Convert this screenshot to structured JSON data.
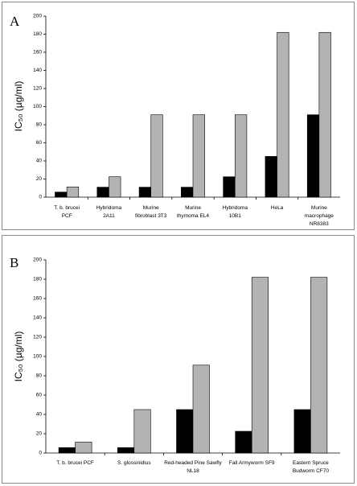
{
  "chart_data": [
    {
      "type": "bar",
      "panel_label": "A",
      "y_label": "IC₅₀ (µg/ml)",
      "categories": [
        "T. b. brucei\nPCF",
        "Hybridoma\n2A11",
        "Murine\nfibroblast 3T3",
        "Murine\nthymoma EL4",
        "Hybridoma\n10B1",
        "HeLa",
        "Murine\nmacrophage\nNR8383"
      ],
      "series": [
        {
          "color": "#000000",
          "values": [
            5.6,
            11,
            11,
            11,
            22.5,
            45,
            91
          ]
        },
        {
          "color": "#b3b3b3",
          "values": [
            11.3,
            22.5,
            91,
            91,
            91,
            182,
            182
          ]
        }
      ],
      "ylim": [
        0,
        200
      ],
      "yticks": [
        0,
        20,
        40,
        60,
        80,
        100,
        120,
        140,
        160,
        180,
        200
      ]
    },
    {
      "type": "bar",
      "panel_label": "B",
      "y_label": "IC₅₀ (µg/ml)",
      "categories": [
        "T. b. brucei PCF",
        "S. glossinidius",
        "Red-headed Pine Sawfly\nNL18",
        "Fall Armyworm SF9",
        "Eastern Spruce\nBudworm CF70"
      ],
      "series": [
        {
          "color": "#000000",
          "values": [
            5.6,
            5.6,
            45,
            22.5,
            45
          ]
        },
        {
          "color": "#b3b3b3",
          "values": [
            11.3,
            45,
            91,
            182,
            182
          ]
        }
      ],
      "ylim": [
        0,
        200
      ],
      "yticks": [
        0,
        20,
        40,
        60,
        80,
        100,
        120,
        140,
        160,
        180,
        200
      ]
    }
  ]
}
